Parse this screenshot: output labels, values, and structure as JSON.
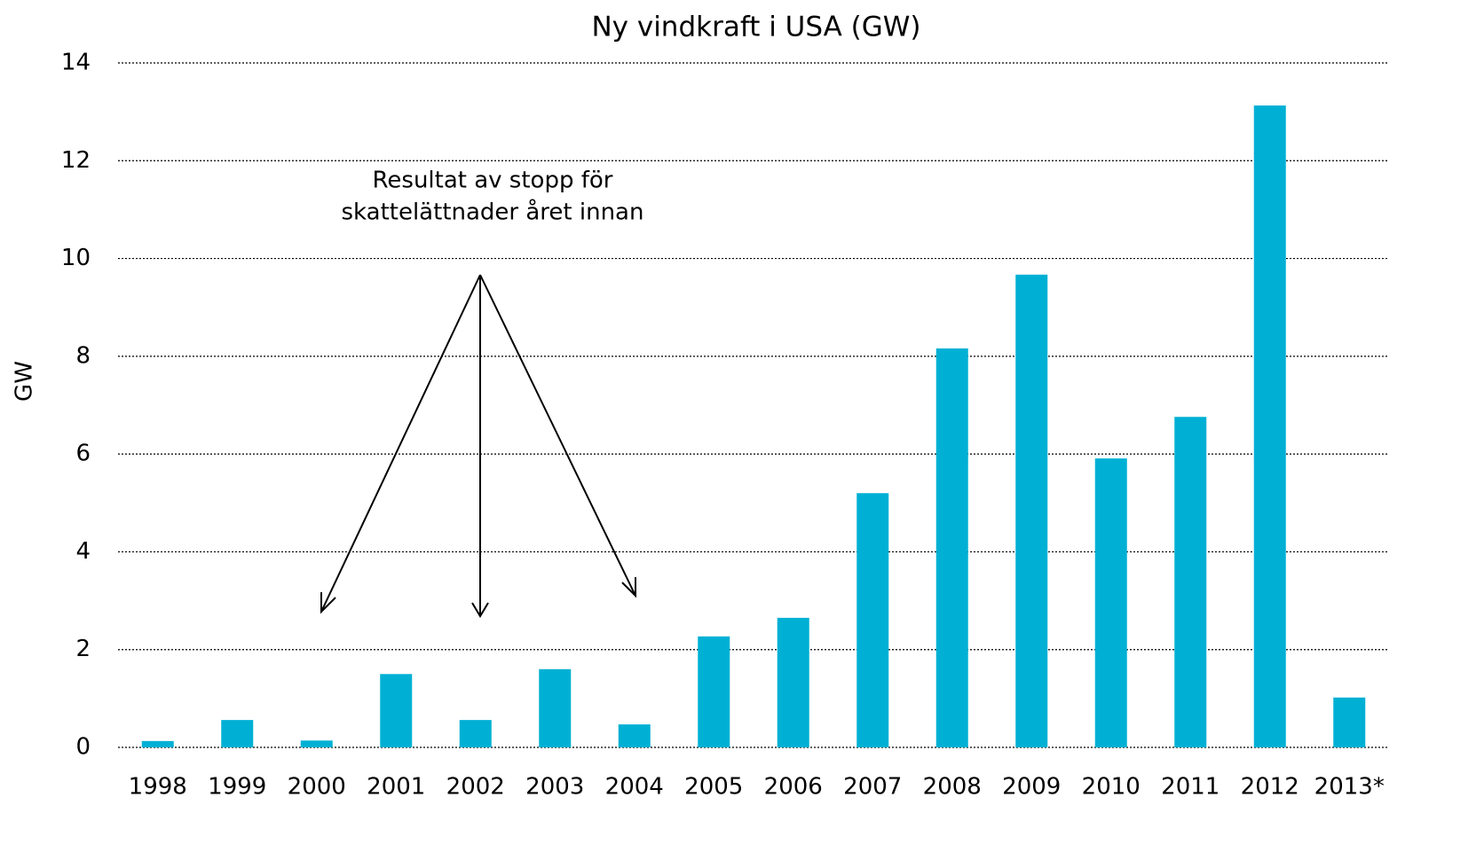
{
  "chart_data": {
    "type": "bar",
    "title": "Ny vindkraft i USA (GW)",
    "y_label": "GW",
    "categories": [
      "1998",
      "1999",
      "2000",
      "2001",
      "2002",
      "2003",
      "2004",
      "2005",
      "2006",
      "2007",
      "2008",
      "2009",
      "2010",
      "2011",
      "2012",
      "2013*"
    ],
    "values": [
      0.13,
      0.56,
      0.14,
      1.5,
      0.56,
      1.6,
      0.47,
      2.27,
      2.65,
      5.2,
      8.16,
      9.67,
      5.91,
      6.76,
      13.13,
      1.02
    ],
    "color": "#00b0d4",
    "ylim": [
      0,
      14
    ],
    "yticks": [
      0,
      2,
      4,
      6,
      8,
      10,
      12,
      14
    ],
    "grid": true,
    "annotation": [
      "Resultat av stopp för",
      "skattelättnader året innan"
    ]
  }
}
